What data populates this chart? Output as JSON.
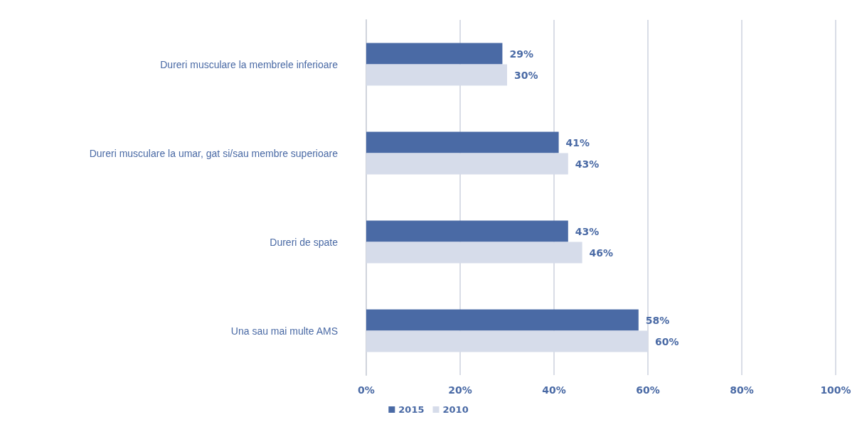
{
  "chart_data": {
    "type": "bar",
    "orientation": "horizontal",
    "categories": [
      "Dureri musculare la membrele inferioare",
      "Dureri musculare la umar, gat si/sau membre superioare",
      "Dureri de spate",
      "Una sau mai multe AMS"
    ],
    "series": [
      {
        "name": "2015",
        "color": "#4a6aa5",
        "values": [
          29,
          41,
          43,
          58
        ],
        "value_labels": [
          "29%",
          "41%",
          "43%",
          "58%"
        ]
      },
      {
        "name": "2010",
        "color": "#d6dcea",
        "values": [
          30,
          43,
          46,
          60
        ],
        "value_labels": [
          "30%",
          "43%",
          "46%",
          "60%"
        ]
      }
    ],
    "xlim": [
      0,
      100
    ],
    "xticks": [
      {
        "value": 0,
        "label": "0%"
      },
      {
        "value": 20,
        "label": "20%"
      },
      {
        "value": 40,
        "label": "40%"
      },
      {
        "value": 60,
        "label": "60%"
      },
      {
        "value": 80,
        "label": "80%"
      },
      {
        "value": 100,
        "label": "100%"
      }
    ],
    "grid": "x",
    "legend": "bottom"
  }
}
